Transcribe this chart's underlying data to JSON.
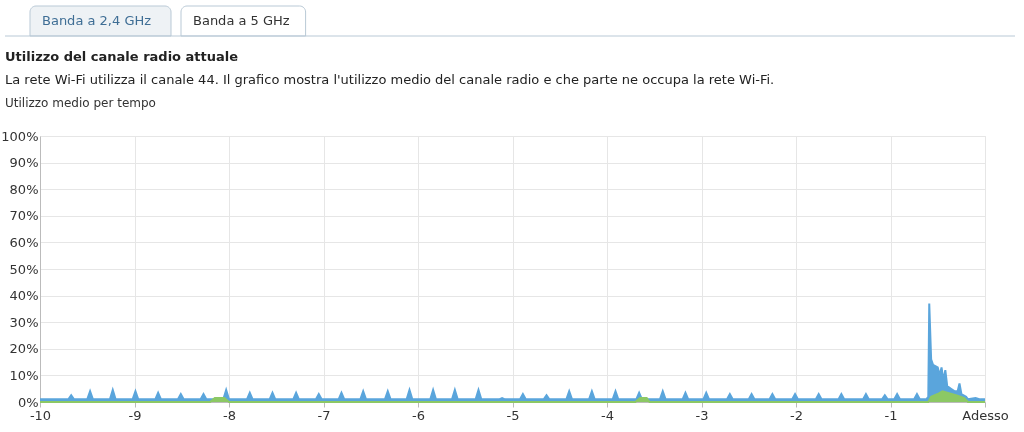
{
  "chart_data": {
    "type": "area",
    "title": "Utilizzo del canale radio attuale",
    "subtitle": "La rete Wi-Fi utilizza il canale 44. Il grafico mostra l'utilizzo medio del canale radio e che parte ne occupa la rete Wi-Fi.",
    "ylabel": "Utilizzo medio per tempo",
    "annotations": [
      "Banda a 2,4 GHz",
      "Banda a 5 GHz"
    ],
    "xlim": [
      -10,
      0
    ],
    "xticks": [
      -10,
      -9,
      -8,
      -7,
      -6,
      -5,
      -4,
      -3,
      -2,
      -1,
      {
        "value": 0,
        "label": "Adesso"
      }
    ],
    "ylim": [
      0,
      100
    ],
    "yticks": [
      {
        "value": 0,
        "label": "0%"
      },
      {
        "value": 10,
        "label": "10%"
      },
      {
        "value": 20,
        "label": "20%"
      },
      {
        "value": 30,
        "label": "30%"
      },
      {
        "value": 40,
        "label": "40%"
      },
      {
        "value": 50,
        "label": "50%"
      },
      {
        "value": 60,
        "label": "60%"
      },
      {
        "value": 70,
        "label": "70%"
      },
      {
        "value": 80,
        "label": "80%"
      },
      {
        "value": 90,
        "label": "90%"
      },
      {
        "value": 100,
        "label": "100%"
      }
    ],
    "grid": true,
    "series": [
      {
        "color": "#5aa5dc",
        "x": [
          -10,
          -9.7,
          -9.67,
          -9.64,
          -9.5,
          -9.47,
          -9.44,
          -9.26,
          -9.23,
          -9.2,
          -9.02,
          -8.99,
          -8.96,
          -8.78,
          -8.75,
          -8.72,
          -8.54,
          -8.51,
          -8.48,
          -8.3,
          -8.27,
          -8.24,
          -8.06,
          -8.03,
          -8.0,
          -7.81,
          -7.78,
          -7.75,
          -7.57,
          -7.54,
          -7.51,
          -7.32,
          -7.29,
          -7.26,
          -7.08,
          -7.05,
          -7.02,
          -6.84,
          -6.81,
          -6.78,
          -6.61,
          -6.58,
          -6.55,
          -6.35,
          -6.32,
          -6.29,
          -6.12,
          -6.09,
          -6.06,
          -5.87,
          -5.84,
          -5.81,
          -5.64,
          -5.61,
          -5.58,
          -5.39,
          -5.36,
          -5.33,
          -5.14,
          -5.11,
          -5.08,
          -4.92,
          -4.89,
          -4.86,
          -4.67,
          -4.64,
          -4.61,
          -4.43,
          -4.4,
          -4.37,
          -4.19,
          -4.16,
          -4.13,
          -3.94,
          -3.91,
          -3.88,
          -3.69,
          -3.66,
          -3.63,
          -3.44,
          -3.41,
          -3.38,
          -3.2,
          -3.17,
          -3.14,
          -2.98,
          -2.95,
          -2.92,
          -2.73,
          -2.7,
          -2.67,
          -2.5,
          -2.47,
          -2.44,
          -2.28,
          -2.25,
          -2.22,
          -2.04,
          -2.01,
          -1.98,
          -1.79,
          -1.76,
          -1.73,
          -1.55,
          -1.52,
          -1.49,
          -1.29,
          -1.26,
          -1.23,
          -1.09,
          -1.06,
          -1.03,
          -0.96,
          -0.93,
          -0.9,
          -0.75,
          -0.72,
          -0.69,
          -0.62,
          -0.6,
          -0.59,
          -0.57,
          -0.55,
          -0.5,
          -0.48,
          -0.46,
          -0.44,
          -0.42,
          -0.4,
          -0.36,
          -0.32,
          -0.29,
          -0.27,
          -0.25,
          -0.2,
          -0.18,
          -0.1,
          -0.05,
          0
        ],
        "values": [
          1,
          1,
          2.5,
          1,
          1,
          4,
          1,
          1,
          4.5,
          1,
          1,
          4,
          1,
          1,
          3.5,
          1,
          1,
          3,
          1,
          1,
          3,
          1,
          1,
          4.5,
          1,
          1,
          3.5,
          1,
          1,
          3.5,
          1,
          1,
          3.5,
          1,
          1,
          3,
          1,
          1,
          3.5,
          1,
          1,
          4,
          1,
          1,
          4,
          1,
          1,
          4.5,
          1,
          1,
          4.5,
          1,
          1,
          4.5,
          1,
          1,
          4.5,
          1,
          1,
          1.5,
          1,
          1,
          3,
          1,
          1,
          2.5,
          1,
          1,
          4,
          1,
          1,
          4,
          1,
          1,
          4,
          1,
          1,
          3.5,
          1,
          1,
          4,
          1,
          1,
          3.5,
          1,
          1,
          3.5,
          1,
          1,
          3,
          1,
          1,
          3,
          1,
          1,
          3,
          1,
          1,
          3,
          1,
          1,
          3,
          1,
          1,
          3,
          1,
          1,
          3,
          1,
          1,
          2.5,
          1,
          1,
          3,
          1,
          1,
          3,
          1,
          1,
          2,
          37,
          16,
          14,
          13,
          10,
          13,
          8,
          12,
          6,
          5,
          4,
          4,
          7,
          3,
          2,
          1,
          1.5,
          1,
          1
        ]
      },
      {
        "color": "#8cc864",
        "x": [
          -10,
          -8.2,
          -8.15,
          -8.05,
          -8.0,
          -3.7,
          -3.65,
          -3.58,
          -3.55,
          -0.6,
          -0.57,
          -0.5,
          -0.45,
          -0.4,
          -0.3,
          -0.22,
          -0.18,
          0
        ],
        "values": [
          0,
          0,
          1.5,
          1.5,
          0,
          0,
          1.5,
          1.5,
          0,
          0,
          2,
          3,
          4,
          3.5,
          2.5,
          1.5,
          0,
          0
        ]
      }
    ]
  }
}
